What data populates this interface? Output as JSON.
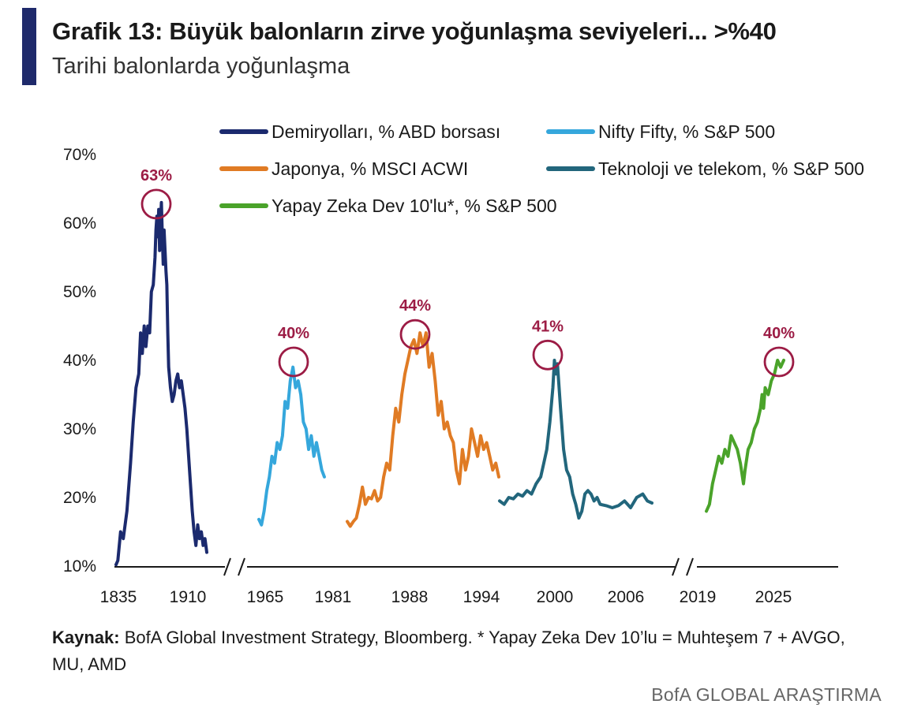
{
  "header": {
    "title": "Grafik 13: Büyük balonların zirve yoğunlaşma seviyeleri... >%40",
    "subtitle": "Tarihi balonlarda yoğunlaşma"
  },
  "footer": {
    "source_label": "Kaynak:",
    "source_text": "BofA Global Investment Strategy, Bloomberg. * Yapay Zeka Dev 10’lu = Muhteşem 7 + AVGO, MU, AMD",
    "brand": "BofA GLOBAL ARAŞTIRMA"
  },
  "chart_data": {
    "type": "line",
    "title": "Grafik 13: Büyük balonların zirve yoğunlaşma seviyeleri... >%40",
    "subtitle": "Tarihi balonlarda yoğunlaşma",
    "ylim": [
      10,
      70
    ],
    "yticks": [
      "10%",
      "20%",
      "30%",
      "40%",
      "50%",
      "60%",
      "70%"
    ],
    "xticks": [
      "1835",
      "1910",
      "1965",
      "1981",
      "1988",
      "1994",
      "2000",
      "2006",
      "2019",
      "2025"
    ],
    "axis_breaks": [
      "1910–1965",
      "2006–2019"
    ],
    "legend_placement": "top",
    "grid": false,
    "peak_color": "#9c1c45",
    "series": [
      {
        "name": "Demiryolları, % ABD borsası",
        "color": "#1b2a6e",
        "peak_label": "63%",
        "points": [
          [
            0,
            10.2
          ],
          [
            0.02,
            10.8
          ],
          [
            0.05,
            15
          ],
          [
            0.08,
            14
          ],
          [
            0.12,
            18
          ],
          [
            0.16,
            25
          ],
          [
            0.19,
            31
          ],
          [
            0.22,
            36
          ],
          [
            0.25,
            38
          ],
          [
            0.27,
            44
          ],
          [
            0.29,
            41
          ],
          [
            0.31,
            45
          ],
          [
            0.33,
            42
          ],
          [
            0.35,
            45
          ],
          [
            0.37,
            44
          ],
          [
            0.39,
            50
          ],
          [
            0.41,
            51
          ],
          [
            0.43,
            55
          ],
          [
            0.44,
            59
          ],
          [
            0.45,
            61
          ],
          [
            0.46,
            58
          ],
          [
            0.47,
            62
          ],
          [
            0.48,
            56
          ],
          [
            0.49,
            60
          ],
          [
            0.5,
            63
          ],
          [
            0.51,
            58
          ],
          [
            0.52,
            54
          ],
          [
            0.53,
            59
          ],
          [
            0.54,
            56
          ],
          [
            0.55,
            53
          ],
          [
            0.56,
            51
          ],
          [
            0.57,
            44
          ],
          [
            0.58,
            39
          ],
          [
            0.6,
            36
          ],
          [
            0.62,
            34
          ],
          [
            0.64,
            35
          ],
          [
            0.66,
            37
          ],
          [
            0.68,
            38
          ],
          [
            0.7,
            36
          ],
          [
            0.72,
            37
          ],
          [
            0.74,
            35
          ],
          [
            0.76,
            33
          ],
          [
            0.78,
            30
          ],
          [
            0.8,
            26
          ],
          [
            0.82,
            22
          ],
          [
            0.84,
            18
          ],
          [
            0.86,
            15
          ],
          [
            0.88,
            13
          ],
          [
            0.9,
            16
          ],
          [
            0.92,
            14
          ],
          [
            0.94,
            15
          ],
          [
            0.96,
            13
          ],
          [
            0.98,
            14
          ],
          [
            1,
            12
          ]
        ]
      },
      {
        "name": "Nifty Fifty, % S&P 500",
        "color": "#35a7dc",
        "peak_label": "40%",
        "points": [
          [
            0,
            16.8
          ],
          [
            0.04,
            16
          ],
          [
            0.08,
            18
          ],
          [
            0.12,
            21
          ],
          [
            0.16,
            23
          ],
          [
            0.2,
            26
          ],
          [
            0.24,
            25
          ],
          [
            0.28,
            28
          ],
          [
            0.32,
            27
          ],
          [
            0.36,
            29
          ],
          [
            0.4,
            34
          ],
          [
            0.44,
            33
          ],
          [
            0.48,
            37
          ],
          [
            0.52,
            39
          ],
          [
            0.56,
            36
          ],
          [
            0.6,
            37
          ],
          [
            0.64,
            35
          ],
          [
            0.68,
            31
          ],
          [
            0.72,
            30
          ],
          [
            0.76,
            27
          ],
          [
            0.8,
            29
          ],
          [
            0.84,
            26
          ],
          [
            0.88,
            28
          ],
          [
            0.92,
            26
          ],
          [
            0.96,
            24
          ],
          [
            1,
            23
          ]
        ]
      },
      {
        "name": "Japonya, % MSCI ACWI",
        "color": "#e07b24",
        "peak_label": "44%",
        "points": [
          [
            0,
            16.5
          ],
          [
            0.02,
            15.8
          ],
          [
            0.04,
            16.5
          ],
          [
            0.06,
            17
          ],
          [
            0.08,
            19
          ],
          [
            0.1,
            21.5
          ],
          [
            0.12,
            19
          ],
          [
            0.14,
            20
          ],
          [
            0.16,
            19.8
          ],
          [
            0.18,
            21
          ],
          [
            0.2,
            19.5
          ],
          [
            0.22,
            20
          ],
          [
            0.24,
            23
          ],
          [
            0.26,
            25
          ],
          [
            0.28,
            24
          ],
          [
            0.3,
            29
          ],
          [
            0.32,
            33
          ],
          [
            0.34,
            31
          ],
          [
            0.36,
            35
          ],
          [
            0.38,
            38
          ],
          [
            0.4,
            40
          ],
          [
            0.42,
            42
          ],
          [
            0.44,
            43
          ],
          [
            0.46,
            41
          ],
          [
            0.48,
            44
          ],
          [
            0.5,
            42
          ],
          [
            0.52,
            44
          ],
          [
            0.54,
            39
          ],
          [
            0.56,
            41
          ],
          [
            0.58,
            37
          ],
          [
            0.6,
            32
          ],
          [
            0.62,
            34
          ],
          [
            0.64,
            30
          ],
          [
            0.66,
            31
          ],
          [
            0.68,
            29
          ],
          [
            0.7,
            28
          ],
          [
            0.72,
            24
          ],
          [
            0.74,
            22
          ],
          [
            0.76,
            27
          ],
          [
            0.78,
            24
          ],
          [
            0.8,
            26
          ],
          [
            0.82,
            30
          ],
          [
            0.84,
            28
          ],
          [
            0.86,
            26
          ],
          [
            0.88,
            29
          ],
          [
            0.9,
            27
          ],
          [
            0.92,
            28
          ],
          [
            0.94,
            26
          ],
          [
            0.96,
            24
          ],
          [
            0.98,
            25
          ],
          [
            1,
            23
          ]
        ]
      },
      {
        "name": "Teknoloji ve telekom, % S&P 500",
        "color": "#22667c",
        "peak_label": "41%",
        "points": [
          [
            0,
            19.5
          ],
          [
            0.03,
            19
          ],
          [
            0.06,
            20
          ],
          [
            0.09,
            19.8
          ],
          [
            0.12,
            20.5
          ],
          [
            0.15,
            20.2
          ],
          [
            0.18,
            21
          ],
          [
            0.21,
            20.5
          ],
          [
            0.24,
            22
          ],
          [
            0.27,
            23
          ],
          [
            0.29,
            25
          ],
          [
            0.31,
            27
          ],
          [
            0.33,
            31
          ],
          [
            0.35,
            36
          ],
          [
            0.36,
            40
          ],
          [
            0.37,
            38
          ],
          [
            0.38,
            39.5
          ],
          [
            0.4,
            33
          ],
          [
            0.42,
            27
          ],
          [
            0.44,
            24
          ],
          [
            0.46,
            23
          ],
          [
            0.48,
            20.5
          ],
          [
            0.5,
            19
          ],
          [
            0.52,
            17
          ],
          [
            0.54,
            18
          ],
          [
            0.56,
            20.5
          ],
          [
            0.58,
            21
          ],
          [
            0.6,
            20.5
          ],
          [
            0.62,
            19.5
          ],
          [
            0.64,
            20
          ],
          [
            0.66,
            19
          ],
          [
            0.7,
            18.8
          ],
          [
            0.74,
            18.5
          ],
          [
            0.78,
            18.8
          ],
          [
            0.82,
            19.5
          ],
          [
            0.86,
            18.5
          ],
          [
            0.9,
            20
          ],
          [
            0.94,
            20.5
          ],
          [
            0.97,
            19.5
          ],
          [
            1,
            19.2
          ]
        ]
      },
      {
        "name": "Yapay Zeka Dev 10'lu*, % S&P 500",
        "color": "#4aa32a",
        "peak_label": "40%",
        "points": [
          [
            0,
            18
          ],
          [
            0.04,
            19
          ],
          [
            0.08,
            22
          ],
          [
            0.12,
            24
          ],
          [
            0.16,
            26
          ],
          [
            0.2,
            25
          ],
          [
            0.24,
            27
          ],
          [
            0.28,
            26
          ],
          [
            0.32,
            29
          ],
          [
            0.36,
            28
          ],
          [
            0.4,
            27
          ],
          [
            0.44,
            25
          ],
          [
            0.48,
            22
          ],
          [
            0.5,
            24
          ],
          [
            0.54,
            27
          ],
          [
            0.58,
            28
          ],
          [
            0.62,
            30
          ],
          [
            0.66,
            31
          ],
          [
            0.7,
            33
          ],
          [
            0.72,
            35
          ],
          [
            0.74,
            33
          ],
          [
            0.76,
            36
          ],
          [
            0.8,
            35
          ],
          [
            0.84,
            37
          ],
          [
            0.88,
            38
          ],
          [
            0.92,
            40
          ],
          [
            0.96,
            39
          ],
          [
            1,
            40
          ]
        ]
      }
    ]
  }
}
